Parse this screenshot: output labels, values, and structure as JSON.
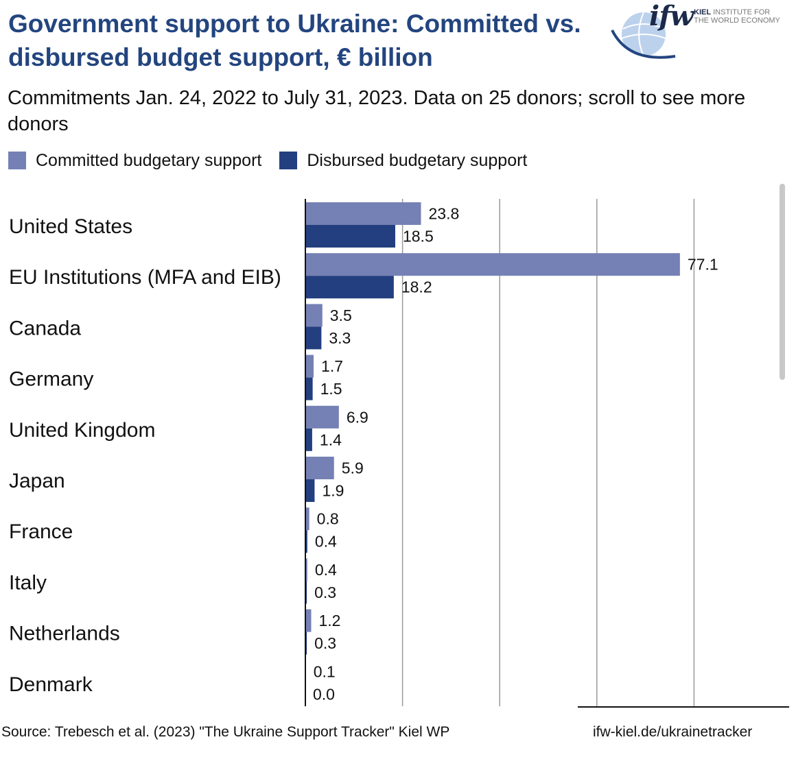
{
  "header": {
    "title": "Government support to Ukraine: Committed vs. disbursed budget support, € billion",
    "subtitle": "Commitments Jan. 24, 2022 to July 31, 2023. Data on 25 donors; scroll to see more donors"
  },
  "logo": {
    "wordmark": "ifw",
    "line1_bold": "KIEL",
    "line1": "INSTITUTE FOR",
    "line2": "THE WORLD ECONOMY"
  },
  "legend": {
    "committed": "Committed budgetary support",
    "disbursed": "Disbursed budgetary support"
  },
  "colors": {
    "committed": "#7581b4",
    "disbursed": "#233f80",
    "title": "#23457f",
    "gridline": "#999999"
  },
  "chart_data": {
    "type": "bar",
    "orientation": "horizontal",
    "categories": [
      "United States",
      "EU Institutions (MFA and EIB)",
      "Canada",
      "Germany",
      "United Kingdom",
      "Japan",
      "France",
      "Italy",
      "Netherlands",
      "Denmark"
    ],
    "series": [
      {
        "name": "Committed budgetary support",
        "values": [
          23.8,
          77.1,
          3.5,
          1.7,
          6.9,
          5.9,
          0.8,
          0.4,
          1.2,
          0.1
        ],
        "labels": [
          "23.8",
          "77.1",
          "3.5",
          "1.7",
          "6.9",
          "5.9",
          "0.8",
          "0.4",
          "1.2",
          "0.1"
        ]
      },
      {
        "name": "Disbursed budgetary support",
        "values": [
          18.5,
          18.2,
          3.3,
          1.5,
          1.4,
          1.9,
          0.4,
          0.3,
          0.3,
          0.0
        ],
        "labels": [
          "18.5",
          "18.2",
          "3.3",
          "1.5",
          "1.4",
          "1.9",
          "0.4",
          "0.3",
          "0.3",
          "0.0"
        ]
      }
    ],
    "xlim": [
      0,
      100
    ],
    "gridlines": [
      20,
      40,
      60,
      80
    ],
    "grid": true,
    "legend_position": "top-left"
  },
  "footer": {
    "source": "Source: Trebesch et al. (2023) \"The Ukraine Support Tracker\" Kiel WP",
    "link": "ifw-kiel.de/ukrainetracker"
  }
}
